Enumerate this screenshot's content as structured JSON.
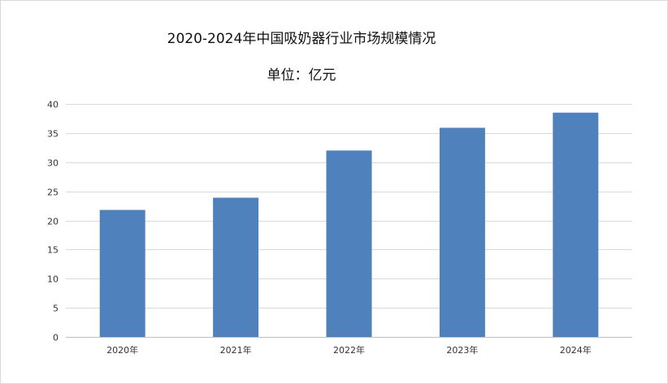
{
  "chart_data": {
    "type": "bar",
    "title": "2020-2024年中国吸奶器行业市场规模情况",
    "subtitle": "单位：亿元",
    "categories": [
      "2020年",
      "2021年",
      "2022年",
      "2023年",
      "2024年"
    ],
    "values": [
      21.8,
      23.9,
      32.0,
      35.9,
      38.5
    ],
    "ylim": [
      0,
      40
    ],
    "yticks": [
      0,
      5,
      10,
      15,
      20,
      25,
      30,
      35,
      40
    ],
    "grid": true,
    "legend": "none",
    "bar_color": "#4f81bd",
    "grid_color": "#d9d9d9"
  }
}
